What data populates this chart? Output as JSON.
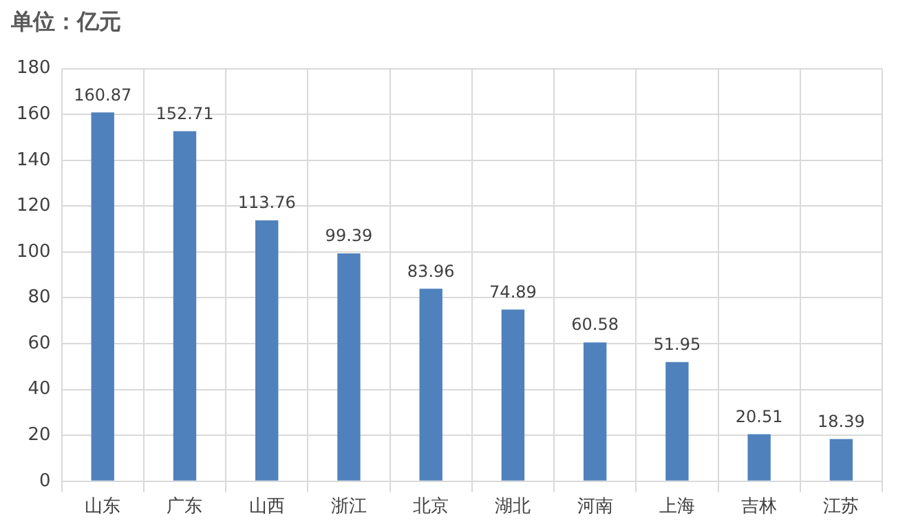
{
  "chart_data": {
    "type": "bar",
    "title": "单位：亿元",
    "categories": [
      "山东",
      "广东",
      "山西",
      "浙江",
      "北京",
      "湖北",
      "河南",
      "上海",
      "吉林",
      "江苏"
    ],
    "values": [
      160.87,
      152.71,
      113.76,
      99.39,
      83.96,
      74.89,
      60.58,
      51.95,
      20.51,
      18.39
    ],
    "color": "#4f81bd",
    "ylim": [
      0,
      180
    ],
    "yticks": [
      0,
      20,
      40,
      60,
      80,
      100,
      120,
      140,
      160,
      180
    ],
    "grid": true,
    "data_labels": true
  }
}
